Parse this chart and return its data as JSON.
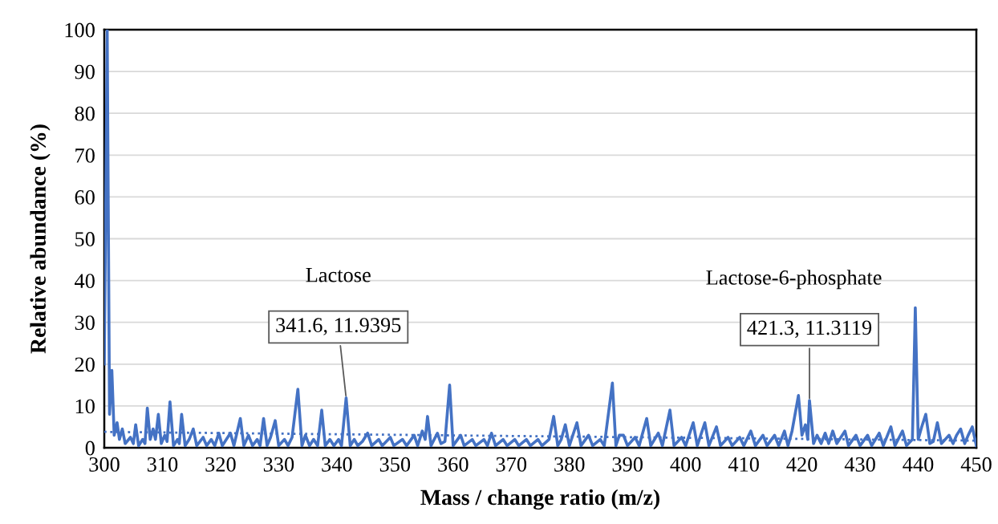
{
  "chart_data": {
    "type": "line",
    "xlabel": "Mass / change ratio (m/z)",
    "ylabel": "Relative abundance (%)",
    "xlim": [
      300,
      450
    ],
    "xticks": [
      300,
      310,
      320,
      330,
      340,
      350,
      360,
      370,
      380,
      390,
      400,
      410,
      420,
      430,
      440,
      450
    ],
    "ylim": [
      0,
      100
    ],
    "yticks": [
      0,
      10,
      20,
      30,
      40,
      50,
      60,
      70,
      80,
      90,
      100
    ],
    "grid": "y",
    "marker": "none",
    "series": [
      {
        "color": "#4472c4",
        "line_style": "solid",
        "x": [
          300.0,
          300.2,
          300.5,
          300.9,
          301.3,
          301.7,
          302.2,
          302.6,
          303.1,
          303.6,
          304.5,
          305.0,
          305.4,
          305.9,
          306.6,
          307.0,
          307.4,
          307.9,
          308.4,
          308.8,
          309.3,
          309.8,
          310.4,
          310.8,
          311.3,
          311.9,
          312.6,
          312.9,
          313.3,
          313.9,
          314.6,
          315.3,
          315.9,
          317.0,
          317.6,
          318.4,
          319.0,
          319.7,
          320.3,
          321.0,
          321.7,
          322.3,
          323.4,
          324.0,
          324.8,
          325.5,
          326.3,
          326.8,
          327.4,
          328.0,
          328.6,
          329.4,
          330.0,
          331.0,
          331.6,
          332.3,
          333.3,
          334.0,
          334.6,
          335.3,
          336.0,
          336.7,
          337.4,
          338.0,
          338.8,
          339.5,
          340.3,
          340.8,
          341.6,
          342.3,
          343.0,
          343.6,
          344.4,
          345.3,
          346.0,
          347.2,
          347.8,
          349.2,
          349.8,
          351.3,
          352.0,
          353.3,
          353.9,
          354.7,
          355.2,
          355.6,
          356.2,
          357.3,
          357.9,
          358.6,
          359.4,
          360.0,
          361.3,
          361.9,
          363.3,
          363.9,
          365.3,
          365.9,
          366.6,
          367.3,
          368.6,
          369.3,
          370.6,
          371.3,
          372.6,
          373.3,
          374.6,
          375.3,
          376.5,
          377.3,
          378.0,
          378.6,
          379.3,
          380.0,
          381.3,
          382.0,
          383.3,
          384.0,
          385.3,
          386.0,
          387.4,
          388.0,
          388.6,
          389.3,
          390.0,
          391.3,
          392.0,
          393.3,
          394.0,
          395.3,
          396.0,
          397.3,
          398.0,
          399.3,
          400.0,
          401.3,
          402.0,
          403.3,
          404.0,
          405.3,
          406.0,
          407.3,
          408.0,
          409.3,
          410.0,
          411.2,
          412.0,
          413.3,
          414.0,
          415.3,
          416.0,
          417.0,
          417.6,
          418.3,
          419.4,
          420.0,
          420.6,
          421.0,
          421.3,
          422.0,
          422.6,
          423.3,
          424.0,
          424.6,
          425.3,
          426.0,
          427.4,
          428.0,
          429.3,
          430.0,
          431.3,
          432.0,
          433.3,
          434.0,
          435.3,
          436.0,
          437.3,
          438.0,
          439.0,
          439.2,
          439.5,
          440.0,
          440.6,
          441.3,
          442.0,
          442.6,
          443.3,
          444.0,
          445.3,
          446.0,
          446.6,
          447.3,
          448.0,
          448.6,
          449.3,
          450.0
        ],
        "values": [
          20,
          50,
          100,
          8,
          18.5,
          3,
          6,
          2,
          4.5,
          1,
          2.5,
          1,
          5.5,
          0.5,
          2,
          1,
          9.5,
          2,
          4.5,
          2,
          8,
          1,
          3,
          1.5,
          11,
          0.5,
          2,
          1,
          8,
          0.5,
          2,
          4.5,
          0.5,
          2.5,
          0.5,
          2,
          0.5,
          3.5,
          0.5,
          2,
          3.5,
          0.5,
          7,
          0.5,
          3,
          0.5,
          2,
          0.5,
          7,
          0.5,
          2.5,
          6.5,
          0.5,
          2,
          0.5,
          2.5,
          14,
          0.5,
          3,
          0.5,
          2,
          0.5,
          9,
          0.5,
          2,
          0.5,
          2,
          0.5,
          11.9395,
          0.5,
          2,
          0.5,
          1.5,
          3.5,
          0.5,
          2,
          0.5,
          2.5,
          0.5,
          2,
          0.5,
          3,
          0.5,
          4,
          2,
          7.5,
          0.5,
          3.5,
          1,
          1.5,
          15,
          0.5,
          3,
          0.5,
          2,
          0.5,
          2,
          0.5,
          3.5,
          0.5,
          2,
          0.5,
          2,
          0.5,
          2,
          0.5,
          2,
          0.5,
          2,
          7.5,
          0.5,
          2,
          5.5,
          0.5,
          6,
          0.5,
          3,
          0.5,
          2,
          0.5,
          15.5,
          0.5,
          3,
          3,
          0.5,
          2.5,
          0.5,
          7,
          0.5,
          3.5,
          0.5,
          9,
          0.5,
          2.5,
          0.5,
          6,
          0.5,
          6,
          0.5,
          5,
          0.5,
          2.5,
          0.5,
          2.5,
          0.5,
          4,
          0.5,
          3,
          0.5,
          3,
          0.5,
          4,
          0.5,
          4,
          12.5,
          3,
          5.5,
          2,
          11.3119,
          1,
          3,
          1,
          3.5,
          1,
          4,
          1,
          4,
          0.5,
          3,
          0.5,
          3,
          0.5,
          3.5,
          0.5,
          5,
          0.5,
          4,
          0.5,
          2,
          14,
          33.5,
          2,
          5,
          8,
          1,
          1.5,
          6,
          1,
          3,
          1,
          3,
          4.5,
          1,
          3,
          5,
          0.5
        ]
      },
      {
        "color": "#4472c4",
        "line_style": "dotted",
        "x": [
          300,
          450
        ],
        "values": [
          3.8,
          1.7
        ]
      }
    ],
    "annotations": [
      "Lactose",
      {
        "text": "341.6, 11.9395",
        "x": 341.6,
        "y": 11.9395
      },
      "Lactose-6-phosphate",
      {
        "text": "421.3, 11.3119",
        "x": 421.3,
        "y": 11.3119
      }
    ]
  }
}
